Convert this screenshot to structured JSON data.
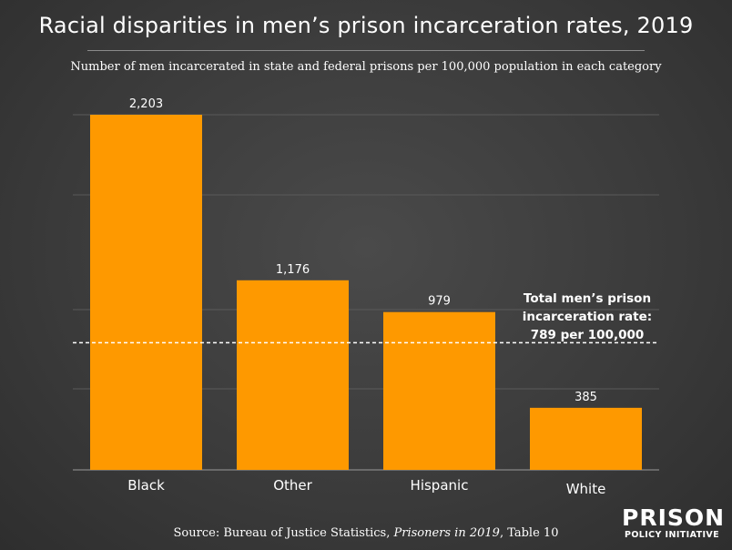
{
  "chart_data": {
    "type": "bar",
    "title": "Racial disparities in men’s prison incarceration rates, 2019",
    "subtitle": "Number of men incarcerated in state and federal prisons per 100,000 population in each category",
    "categories": [
      "Black",
      "Other",
      "Hispanic",
      "White"
    ],
    "values": [
      2203,
      1176,
      979,
      385
    ],
    "value_labels": [
      "2,203",
      "1,176",
      "979",
      "385"
    ],
    "ylim": [
      0,
      2203
    ],
    "grid": true,
    "bar_color": "#fe9900",
    "reference_line": {
      "value": 789,
      "label_lines": [
        "Total men’s prison",
        "incarceration rate:",
        "789 per 100,000"
      ]
    },
    "source": {
      "prefix": "Source: Bureau of Justice Statistics, ",
      "italic": "Prisoners in 2019",
      "suffix": ", Table 10"
    }
  },
  "logo": {
    "main": "PRISON",
    "sub": "POLICY INITIATIVE"
  },
  "colors": {
    "background": "#3d3d3d",
    "bar": "#fe9900",
    "grid": "#5a5a5a",
    "text": "#ffffff"
  }
}
